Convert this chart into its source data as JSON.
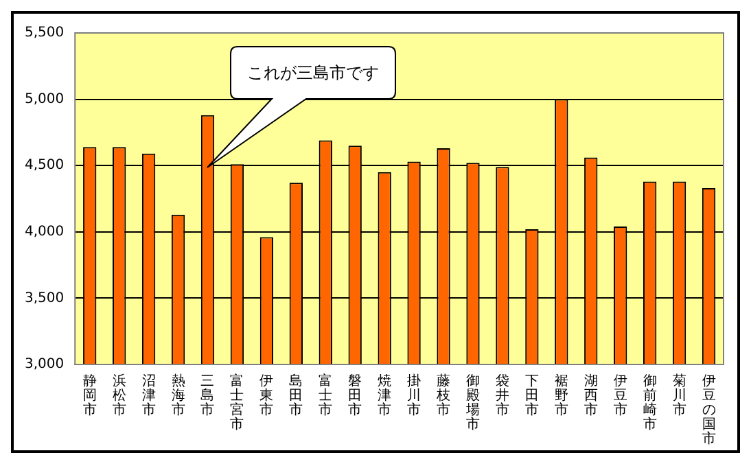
{
  "chart_data": {
    "type": "bar",
    "categories": [
      "静岡市",
      "浜松市",
      "沼津市",
      "熱海市",
      "三島市",
      "富士宮市",
      "伊東市",
      "島田市",
      "富士市",
      "磐田市",
      "焼津市",
      "掛川市",
      "藤枝市",
      "御殿場市",
      "袋井市",
      "下田市",
      "裾野市",
      "湖西市",
      "伊豆市",
      "御前崎市",
      "菊川市",
      "伊豆の国市"
    ],
    "values": [
      4640,
      4640,
      4590,
      4130,
      4880,
      4510,
      3960,
      4370,
      4690,
      4650,
      4450,
      4530,
      4630,
      4520,
      4490,
      4020,
      5000,
      4560,
      4040,
      4380,
      4380,
      4330
    ],
    "color": "#ff6600",
    "ylim": [
      3000,
      5500
    ],
    "yticks": [
      {
        "value": 3000,
        "label": "3,000"
      },
      {
        "value": 3500,
        "label": "3,500"
      },
      {
        "value": 4000,
        "label": "4,000"
      },
      {
        "value": 4500,
        "label": "4,500"
      },
      {
        "value": 5000,
        "label": "5,000"
      },
      {
        "value": 5500,
        "label": "5,500"
      }
    ],
    "grid": "y",
    "legend": false,
    "annotations": [
      "これが三島市です"
    ]
  }
}
